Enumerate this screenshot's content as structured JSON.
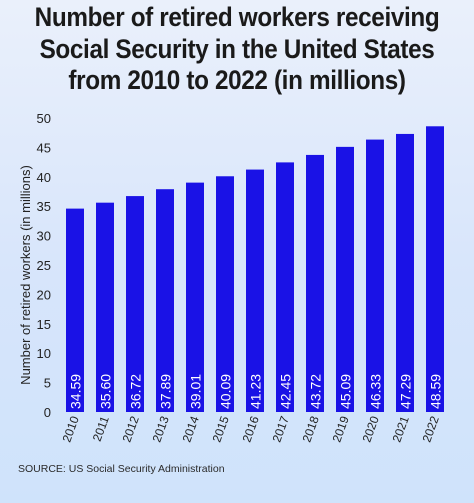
{
  "title_lines": [
    "Number of retired workers receiving",
    "Social Security in the United States",
    "from 2010 to 2022 (in millions)"
  ],
  "source": "SOURCE: US Social Security Administration",
  "colors": {
    "bar": "#1a12e6",
    "label": "#ffffff",
    "axis": "#333333"
  },
  "chart_data": {
    "type": "bar",
    "categories": [
      "2010",
      "2011",
      "2012",
      "2013",
      "2014",
      "2015",
      "2016",
      "2017",
      "2018",
      "2019",
      "2020",
      "2021",
      "2022"
    ],
    "values": [
      34.59,
      35.6,
      36.72,
      37.89,
      39.01,
      40.09,
      41.23,
      42.45,
      43.72,
      45.09,
      46.33,
      47.29,
      48.59
    ],
    "value_labels": [
      "34.59",
      "35.60",
      "36.72",
      "37.89",
      "39.01",
      "40.09",
      "41.23",
      "42.45",
      "43.72",
      "45.09",
      "46.33",
      "47.29",
      "48.59"
    ],
    "ylabel": "Number of retired workers (in millions)",
    "xlabel": "",
    "ylim": [
      0,
      50
    ],
    "yticks": [
      0,
      5,
      10,
      15,
      20,
      25,
      30,
      35,
      40,
      45,
      50
    ],
    "grid": false,
    "legend": "none"
  }
}
